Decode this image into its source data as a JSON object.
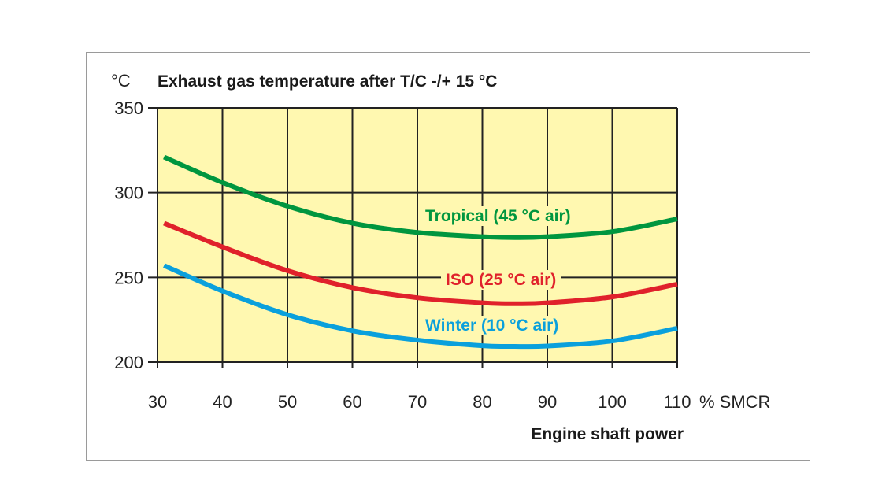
{
  "chart_data": {
    "type": "line",
    "title": "Exhaust gas temperature after T/C -/+ 15 °C",
    "ylabel": "°C",
    "xlabel": "Engine shaft power",
    "x_unit": "% SMCR",
    "xlim": [
      30,
      110
    ],
    "ylim": [
      200,
      350
    ],
    "xticks": [
      30,
      40,
      50,
      60,
      70,
      80,
      90,
      100,
      110
    ],
    "yticks": [
      200,
      250,
      300,
      350
    ],
    "grid": true,
    "plot_background": "#fff8b0",
    "x": [
      31,
      40,
      50,
      60,
      70,
      80,
      85,
      90,
      100,
      110
    ],
    "series": [
      {
        "name": "Tropical (45 °C air)",
        "color": "#00963f",
        "values": [
          321,
          306,
          292,
          282,
          276.5,
          274,
          273.5,
          274,
          277,
          284.5
        ]
      },
      {
        "name": "ISO (25 °C air)",
        "color": "#e0212b",
        "values": [
          282,
          268,
          254,
          244,
          238,
          235,
          234.5,
          235,
          238.5,
          246
        ]
      },
      {
        "name": "Winter (10 °C air)",
        "color": "#0aa0dc",
        "values": [
          257,
          242,
          228,
          218.5,
          213,
          209.7,
          209.3,
          209.5,
          212.5,
          220
        ]
      }
    ]
  }
}
